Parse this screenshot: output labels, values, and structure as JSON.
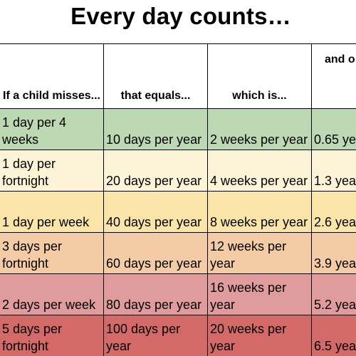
{
  "title": "Every day counts…",
  "headers": [
    "If a child misses...",
    "that equals...",
    "which is...",
    "and o scho"
  ],
  "rows": [
    {
      "misses": "1 day per 4 weeks",
      "equals": "10 days per year",
      "which_is": "2 weeks per year",
      "and_of": "0.65 ye",
      "color": "#bcd9b4"
    },
    {
      "misses": "1 day per fortnight",
      "equals": "20 days per year",
      "which_is": "4 weeks per year",
      "and_of": "1.3 yea",
      "color": "#fdf4d7"
    },
    {
      "misses": "1 day per week",
      "equals": "40 days per year",
      "which_is": "8 weeks per year",
      "and_of": "2.6 yea",
      "color": "#fae5a8"
    },
    {
      "misses": "3 days per fortnight",
      "equals": "60 days per year",
      "which_is": "12 weeks per year",
      "and_of": "3.9 yea",
      "color": "#f3cba5"
    },
    {
      "misses": "2 days per week",
      "equals": "80 days per year",
      "which_is": "16 weeks per year",
      "and_of": "5.2 yea",
      "color": "#e09b9c"
    },
    {
      "misses": "5 days per fortnight",
      "equals": "100 days per year",
      "which_is": "20 weeks per year",
      "and_of": "6.5 yea",
      "color": "#d46a68"
    }
  ]
}
